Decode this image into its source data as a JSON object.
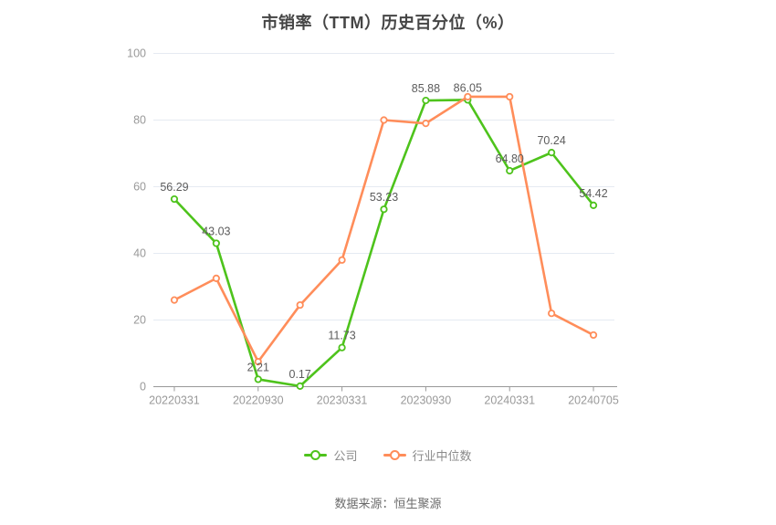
{
  "title": "市销率（TTM）历史百分位（%）",
  "footer": {
    "source": "数据来源：恒生聚源"
  },
  "legend": [
    {
      "label": "公司",
      "color": "#4ec31c"
    },
    {
      "label": "行业中位数",
      "color": "#ff8d5a"
    }
  ],
  "colors": {
    "company": "#4ec31c",
    "industry": "#ff8d5a",
    "grid": "#e5eaf2",
    "axis_line": "#999999",
    "axis_text": "#999999",
    "point_label": "#5c5c5c",
    "title_text": "#454545",
    "background": "#ffffff"
  },
  "chart_data": {
    "type": "line",
    "title": "市销率（TTM）历史百分位（%）",
    "categories": [
      "20220331",
      "",
      "20220930",
      "",
      "20230331",
      "",
      "20230930",
      "",
      "20240331",
      "",
      "20240705"
    ],
    "series": [
      {
        "name": "公司",
        "color": "#4ec31c",
        "values": [
          56.29,
          43.03,
          2.21,
          0.17,
          11.73,
          53.23,
          85.88,
          86.05,
          64.8,
          70.24,
          54.42
        ],
        "show_point_labels": true
      },
      {
        "name": "行业中位数",
        "color": "#ff8d5a",
        "values": [
          26,
          32.5,
          7.5,
          24.5,
          38,
          80,
          79,
          87,
          87,
          22,
          15.5
        ],
        "show_point_labels": false
      }
    ],
    "ylim": [
      0,
      100
    ],
    "yticks": [
      0,
      20,
      40,
      60,
      80,
      100
    ],
    "grid": true,
    "legend_position": "bottom",
    "xlabel": "",
    "ylabel": ""
  }
}
